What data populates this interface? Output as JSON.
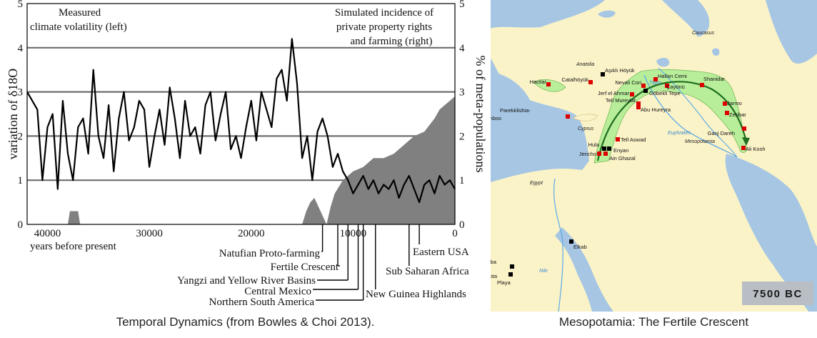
{
  "chart_data": {
    "type": "line",
    "title_left": [
      "Measured",
      "climate volatility (left)"
    ],
    "title_right": [
      "Simulated incidence of",
      "private property rights",
      "and farming (right)"
    ],
    "ylabel_left": "variation of δ18O",
    "ylabel_right": "% of meta-populations",
    "xlabel": "years before present",
    "x_ticks": [
      40000,
      30000,
      20000,
      10000,
      0
    ],
    "y_ticks": [
      0,
      1,
      2,
      3,
      4,
      5
    ],
    "xlim": [
      42000,
      0
    ],
    "ylim": [
      0,
      5
    ],
    "grid": "horizontal",
    "series": [
      {
        "kind": "line",
        "axis": "left",
        "values_x_years_bp": [
          42000,
          41000,
          40500,
          40000,
          39500,
          39000,
          38500,
          38000,
          37500,
          37000,
          36500,
          36000,
          35500,
          35000,
          34500,
          34000,
          33500,
          33000,
          32500,
          32000,
          31500,
          31000,
          30500,
          30000,
          29500,
          29000,
          28500,
          28000,
          27500,
          27000,
          26500,
          26000,
          25500,
          25000,
          24500,
          24000,
          23500,
          23000,
          22500,
          22000,
          21500,
          21000,
          20500,
          20000,
          19500,
          19000,
          18500,
          18000,
          17500,
          17000,
          16500,
          16000,
          15500,
          15000,
          14500,
          14000,
          13500,
          13000,
          12500,
          12000,
          11500,
          11000,
          10500,
          10000,
          9500,
          9000,
          8500,
          8000,
          7500,
          7000,
          6500,
          6000,
          5500,
          5000,
          4500,
          4000,
          3500,
          3000,
          2500,
          2000,
          1500,
          1000,
          500,
          0
        ],
        "values_y": [
          3.0,
          2.6,
          1.0,
          2.2,
          2.5,
          0.8,
          2.8,
          1.6,
          1.0,
          2.2,
          2.4,
          1.6,
          3.5,
          2.0,
          1.5,
          2.7,
          1.2,
          2.4,
          3.0,
          1.9,
          2.2,
          2.8,
          2.6,
          1.3,
          2.0,
          2.6,
          1.8,
          3.1,
          2.4,
          1.5,
          2.8,
          2.0,
          2.2,
          1.6,
          2.7,
          3.0,
          1.9,
          2.5,
          3.0,
          1.7,
          2.0,
          1.5,
          2.2,
          2.8,
          1.9,
          3.0,
          2.6,
          2.2,
          3.3,
          3.5,
          2.8,
          4.2,
          3.2,
          1.5,
          2.0,
          1.0,
          2.1,
          2.4,
          2.0,
          1.3,
          1.6,
          1.2,
          1.0,
          0.7,
          0.9,
          1.1,
          0.8,
          1.0,
          0.7,
          0.9,
          0.8,
          1.0,
          0.6,
          0.9,
          1.1,
          0.8,
          0.5,
          0.9,
          1.0,
          0.7,
          1.1,
          0.9,
          1.0,
          0.8
        ]
      },
      {
        "kind": "area",
        "axis": "right",
        "values_x_years_bp": [
          42000,
          38000,
          37800,
          37400,
          37000,
          36800,
          15000,
          14600,
          14200,
          13800,
          12600,
          12200,
          11800,
          11000,
          10000,
          9000,
          8000,
          7000,
          6000,
          5000,
          4000,
          3000,
          2000,
          1500,
          1000,
          500,
          0
        ],
        "values_y": [
          0,
          0,
          0.3,
          0.3,
          0.3,
          0,
          0,
          0.3,
          0.5,
          0.6,
          0,
          0.4,
          0.7,
          1.0,
          1.2,
          1.3,
          1.5,
          1.5,
          1.6,
          1.8,
          2.0,
          2.1,
          2.4,
          2.6,
          2.7,
          2.8,
          2.9
        ]
      }
    ],
    "callouts": [
      {
        "label": "Natufian Proto-farming",
        "x": 13000
      },
      {
        "label": "Fertile Crescent",
        "x": 11500
      },
      {
        "label": "Yangzi and Yellow River Basins",
        "x": 10500
      },
      {
        "label": "Central Mexico",
        "x": 9500
      },
      {
        "label": "Northern South America",
        "x": 9000
      },
      {
        "label": "New Guinea Highlands",
        "x": 7800
      },
      {
        "label": "Sub Saharan Africa",
        "x": 4500
      },
      {
        "label": "Eastern USA",
        "x": 3500
      }
    ]
  },
  "captions": {
    "left": "Temporal Dynamics (from Bowles & Choi 2013).",
    "right": "Mesopotamia: The Fertile Crescent"
  },
  "map": {
    "year_badge": "7500 BC",
    "regions": [
      "Caucasus",
      "Anatolia",
      "Egypt",
      "Mesopotamia",
      "Euphrates",
      "Tigris",
      "Nile",
      "Cyprus"
    ],
    "sites": [
      {
        "name": "Aşıklı Höyük",
        "color": "#000000"
      },
      {
        "name": "Hacilar",
        "color": "#dd0000"
      },
      {
        "name": "Catalhöyük",
        "color": "#dd0000"
      },
      {
        "name": "Nevali Cori",
        "color": "#dd0000"
      },
      {
        "name": "Hallan Cemi",
        "color": "#dd0000"
      },
      {
        "name": "Shanidar",
        "color": "#dd0000"
      },
      {
        "name": "Çayönü",
        "color": "#dd0000"
      },
      {
        "name": "Jerf el Ahmar",
        "color": "#dd0000"
      },
      {
        "name": "Göbekli Tepe",
        "color": "#000000"
      },
      {
        "name": "Tell Mureybit",
        "color": "#dd0000"
      },
      {
        "name": "Abu Hureyra",
        "color": "#dd0000"
      },
      {
        "name": "Jarmo",
        "color": "#dd0000"
      },
      {
        "name": "Zeribar",
        "color": "#dd0000"
      },
      {
        "name": "Ganj Dareh",
        "color": "#dd0000"
      },
      {
        "name": "Ali Kosh",
        "color": "#dd0000"
      },
      {
        "name": "Parekklishia-",
        "color": "#000000"
      },
      {
        "name": "Shillourokambos",
        "color": "#dd0000"
      },
      {
        "name": "Tell Aswad",
        "color": "#dd0000"
      },
      {
        "name": "Hula",
        "color": "#000000"
      },
      {
        "name": "Enyan",
        "color": "#000000"
      },
      {
        "name": "Jericho",
        "color": "#dd0000"
      },
      {
        "name": "Ain Ghazal",
        "color": "#dd0000"
      },
      {
        "name": "Elkab",
        "color": "#000000"
      },
      {
        "name": "Bir Kiseiba",
        "color": "#000000"
      },
      {
        "name": "Nabta",
        "color": "#000000"
      },
      {
        "name": "Playa",
        "color": "#000000"
      }
    ],
    "colors": {
      "sea": "#a6c6e4",
      "land": "#fbf3c8",
      "crescent": "#b8ee9a",
      "arrow": "#1f6d1f",
      "river": "#5aa9e6",
      "badge_bg": "#b9bec4"
    }
  }
}
